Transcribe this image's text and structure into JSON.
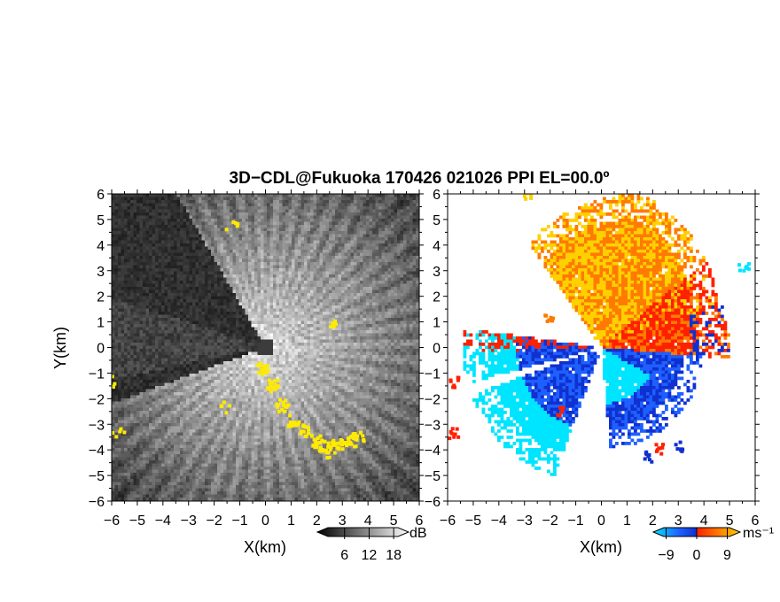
{
  "title": "3D−CDL@Fukuoka 170426 021026 PPI EL=00.0º",
  "chart_data": [
    {
      "type": "heatmap",
      "panel": "snr",
      "xlabel": "X(km)",
      "ylabel": "Y(km)",
      "xlim": [
        -6,
        6
      ],
      "ylim": [
        -6,
        6
      ],
      "xticks": [
        "−6",
        "−5",
        "−4",
        "−3",
        "−2",
        "−1",
        "0",
        "1",
        "2",
        "3",
        "4",
        "5",
        "6"
      ],
      "yticks": [
        "6",
        "5",
        "4",
        "3",
        "2",
        "1",
        "0",
        "−1",
        "−2",
        "−3",
        "−4",
        "−5",
        "−6"
      ],
      "colorbar": {
        "unit": "dB",
        "ticks": [
          "6",
          "12",
          "18"
        ],
        "tick_values": [
          6,
          12,
          18
        ],
        "range": [
          0,
          21
        ],
        "colors": [
          "#000000",
          "#ffffff"
        ]
      },
      "highlight_color": "#ffea00",
      "bright_sectors_deg": [
        [
          -160,
          120
        ]
      ],
      "dark_sectors_deg": [
        [
          120,
          162
        ],
        [
          192,
          265
        ]
      ]
    },
    {
      "type": "heatmap",
      "panel": "doppler_velocity",
      "xlabel": "X(km)",
      "xlim": [
        -6,
        6
      ],
      "ylim": [
        -6,
        6
      ],
      "xticks": [
        "−6",
        "−5",
        "−4",
        "−3",
        "−2",
        "−1",
        "0",
        "1",
        "2",
        "3",
        "4",
        "5",
        "6"
      ],
      "yticks": [
        "6",
        "5",
        "4",
        "3",
        "2",
        "1",
        "0",
        "−1",
        "−2",
        "−3",
        "−4",
        "−5",
        "−6"
      ],
      "colorbar": {
        "unit": "ms⁻¹",
        "ticks": [
          "−9",
          "0",
          "9"
        ],
        "tick_values": [
          -9,
          0,
          9
        ],
        "range": [
          -12,
          12
        ],
        "colors": [
          "#00e5ff",
          "#1e60ff",
          "#1030d0",
          "#ff2000",
          "#ff7a00",
          "#ffd000"
        ]
      }
    }
  ]
}
